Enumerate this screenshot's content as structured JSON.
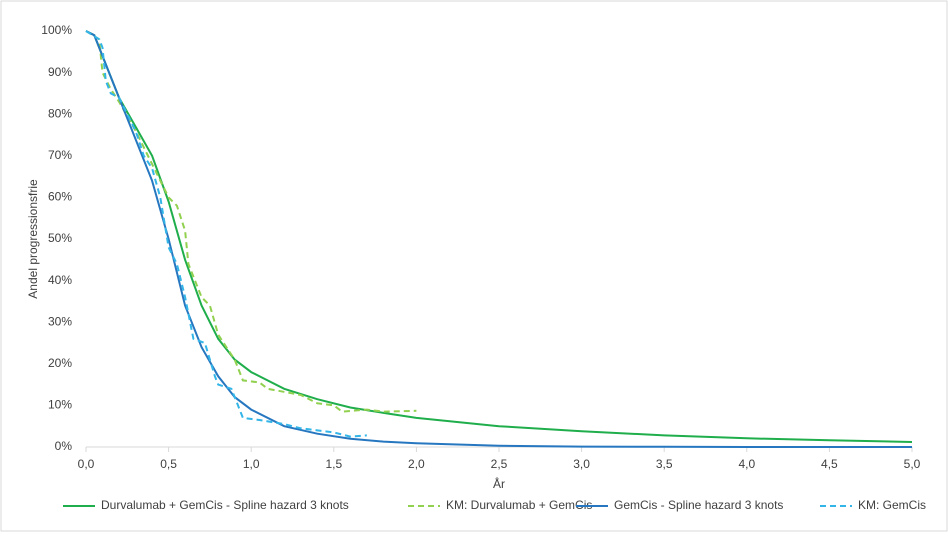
{
  "chart_data": {
    "type": "line",
    "x_label": "År",
    "y_label": "Andel progressionsfrie",
    "xlim": [
      0,
      5
    ],
    "ylim": [
      0,
      100
    ],
    "xticks": [
      {
        "value": 0,
        "label": "0,0"
      },
      {
        "value": 0.5,
        "label": "0,5"
      },
      {
        "value": 1,
        "label": "1,0"
      },
      {
        "value": 1.5,
        "label": "1,5"
      },
      {
        "value": 2,
        "label": "2,0"
      },
      {
        "value": 2.5,
        "label": "2,5"
      },
      {
        "value": 3,
        "label": "3,0"
      },
      {
        "value": 3.5,
        "label": "3,5"
      },
      {
        "value": 4,
        "label": "4,0"
      },
      {
        "value": 4.5,
        "label": "4,5"
      },
      {
        "value": 5,
        "label": "5,0"
      }
    ],
    "yticks": [
      {
        "value": 0,
        "label": "0%"
      },
      {
        "value": 10,
        "label": "10%"
      },
      {
        "value": 20,
        "label": "20%"
      },
      {
        "value": 30,
        "label": "30%"
      },
      {
        "value": 40,
        "label": "40%"
      },
      {
        "value": 50,
        "label": "50%"
      },
      {
        "value": 60,
        "label": "60%"
      },
      {
        "value": 70,
        "label": "70%"
      },
      {
        "value": 80,
        "label": "80%"
      },
      {
        "value": 90,
        "label": "90%"
      },
      {
        "value": 100,
        "label": "100%"
      }
    ],
    "legend": "bottom",
    "series": [
      {
        "name": "Durvalumab + GemCis - Spline hazard 3 knots",
        "color": "#1fae4b",
        "dashed": false,
        "x": [
          0,
          0.05,
          0.1,
          0.2,
          0.3,
          0.4,
          0.5,
          0.6,
          0.7,
          0.8,
          0.9,
          1.0,
          1.2,
          1.4,
          1.6,
          1.8,
          2.0,
          2.5,
          3.0,
          3.5,
          4.0,
          4.5,
          5.0
        ],
        "values": [
          100,
          99,
          94,
          84,
          77,
          70,
          59,
          45,
          34,
          26,
          21,
          18,
          14,
          11.5,
          9.5,
          8.2,
          7,
          5,
          3.8,
          2.8,
          2.1,
          1.6,
          1.2
        ]
      },
      {
        "name": "KM: Durvalumab + GemCis",
        "color": "#92d050",
        "dashed": true,
        "x": [
          0,
          0.08,
          0.1,
          0.15,
          0.2,
          0.3,
          0.4,
          0.5,
          0.55,
          0.6,
          0.62,
          0.7,
          0.75,
          0.8,
          0.85,
          0.9,
          0.95,
          1.05,
          1.1,
          1.3,
          1.4,
          1.5,
          1.55,
          1.7,
          1.8,
          2.0
        ],
        "values": [
          100,
          98,
          90,
          86,
          83,
          76,
          68,
          60,
          58,
          52,
          44,
          36,
          34,
          27,
          24,
          21,
          16,
          15.5,
          14,
          12.5,
          10.5,
          10,
          8.5,
          9,
          8.5,
          8.7
        ]
      },
      {
        "name": "GemCis - Spline hazard 3 knots",
        "color": "#2677c0",
        "dashed": false,
        "x": [
          0,
          0.05,
          0.1,
          0.2,
          0.3,
          0.4,
          0.5,
          0.6,
          0.7,
          0.8,
          0.9,
          1.0,
          1.2,
          1.4,
          1.6,
          1.8,
          2.0,
          2.5,
          3.0,
          3.5,
          4.0,
          4.5,
          5.0
        ],
        "values": [
          100,
          99,
          94,
          84,
          74,
          64,
          50,
          34,
          24,
          17,
          12,
          9,
          5,
          3.2,
          2,
          1.3,
          0.9,
          0.3,
          0.1,
          0.05,
          0,
          0,
          0
        ]
      },
      {
        "name": "KM: GemCis",
        "color": "#33b5e8",
        "dashed": true,
        "x": [
          0,
          0.08,
          0.1,
          0.12,
          0.15,
          0.2,
          0.3,
          0.35,
          0.4,
          0.45,
          0.5,
          0.55,
          0.6,
          0.65,
          0.72,
          0.78,
          0.8,
          0.88,
          0.92,
          0.95,
          1.05,
          1.2,
          1.3,
          1.4,
          1.5,
          1.6,
          1.7
        ],
        "values": [
          100,
          98,
          96,
          88,
          85,
          84,
          76,
          70,
          67,
          60,
          48,
          44,
          36,
          26,
          25,
          17,
          15,
          14,
          10,
          7,
          6.5,
          5.5,
          4.5,
          4,
          3.5,
          2.5,
          2.8
        ]
      }
    ]
  }
}
